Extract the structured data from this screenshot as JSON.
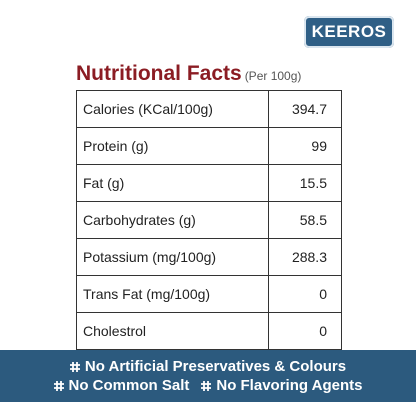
{
  "brand": "KEEROS",
  "header": {
    "title": "Nutritional Facts",
    "subtitle": "(Per 100g)"
  },
  "table": {
    "rows": [
      [
        "Calories (KCal/100g)",
        394.7
      ],
      [
        "Protein (g)",
        99
      ],
      [
        "Fat (g)",
        15.5
      ],
      [
        "Carbohydrates (g)",
        58.5
      ],
      [
        "Potassium (mg/100g)",
        288.3
      ],
      [
        "Trans Fat (mg/100g)",
        0
      ],
      [
        "Cholestrol",
        0
      ]
    ]
  },
  "features": [
    "No Artificial Preservatives & Colours",
    "No Common Salt",
    "No Flavoring Agents"
  ]
}
